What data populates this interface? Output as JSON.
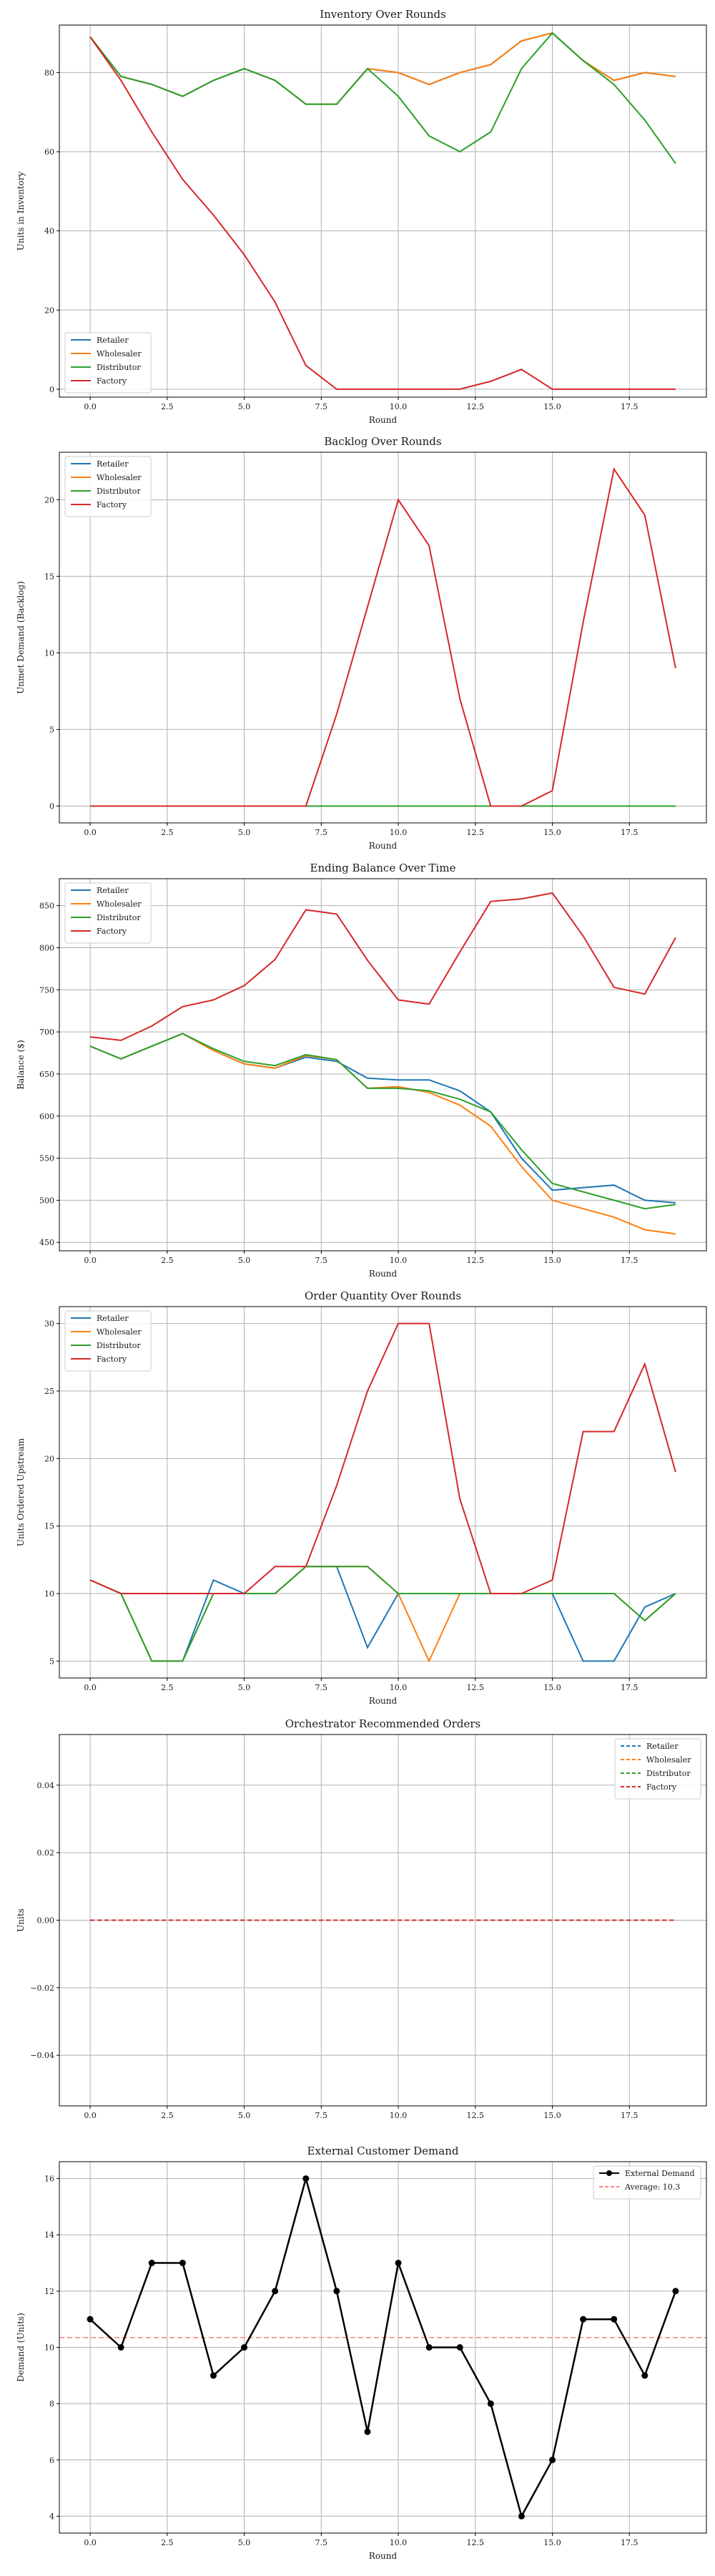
{
  "chart_data": [
    {
      "type": "line",
      "title": "Inventory Over Rounds",
      "xlabel": "Round",
      "ylabel": "Units in Inventory",
      "xlim": [
        -1,
        20
      ],
      "ylim": [
        -2,
        92
      ],
      "xticks": [
        "0.0",
        "2.5",
        "5.0",
        "7.5",
        "10.0",
        "12.5",
        "15.0",
        "17.5"
      ],
      "yticks": [
        "0",
        "20",
        "40",
        "60",
        "80"
      ],
      "grid": true,
      "legend_position": "lower-left",
      "x": [
        0,
        1,
        2,
        3,
        4,
        5,
        6,
        7,
        8,
        9,
        10,
        11,
        12,
        13,
        14,
        15,
        16,
        17,
        18,
        19
      ],
      "series": [
        {
          "name": "Retailer",
          "color": "#1f77b4",
          "values": [
            89,
            79,
            77,
            74,
            78,
            81,
            78,
            72,
            72,
            81,
            80,
            77,
            80,
            82,
            88,
            90,
            83,
            78,
            80,
            79
          ]
        },
        {
          "name": "Wholesaler",
          "color": "#ff7f0e",
          "values": [
            89,
            79,
            77,
            74,
            78,
            81,
            78,
            72,
            72,
            81,
            80,
            77,
            80,
            82,
            88,
            90,
            83,
            78,
            80,
            79
          ]
        },
        {
          "name": "Distributor",
          "color": "#2ca02c",
          "values": [
            89,
            79,
            77,
            74,
            78,
            81,
            78,
            72,
            72,
            81,
            74,
            64,
            60,
            65,
            81,
            90,
            83,
            77,
            68,
            57
          ]
        },
        {
          "name": "Factory",
          "color": "#d62728",
          "values": [
            89,
            78,
            65,
            53,
            44,
            34,
            22,
            6,
            0,
            0,
            0,
            0,
            0,
            2,
            5,
            0,
            0,
            0,
            0,
            0
          ]
        }
      ]
    },
    {
      "type": "line",
      "title": "Backlog Over Rounds",
      "xlabel": "Round",
      "ylabel": "Unmet Demand (Backlog)",
      "xlim": [
        -1,
        20
      ],
      "ylim": [
        -1.1,
        23.1
      ],
      "xticks": [
        "0.0",
        "2.5",
        "5.0",
        "7.5",
        "10.0",
        "12.5",
        "15.0",
        "17.5"
      ],
      "yticks": [
        "0",
        "5",
        "10",
        "15",
        "20"
      ],
      "grid": true,
      "legend_position": "upper-left",
      "x": [
        0,
        1,
        2,
        3,
        4,
        5,
        6,
        7,
        8,
        9,
        10,
        11,
        12,
        13,
        14,
        15,
        16,
        17,
        18,
        19
      ],
      "series": [
        {
          "name": "Retailer",
          "color": "#1f77b4",
          "values": [
            0,
            0,
            0,
            0,
            0,
            0,
            0,
            0,
            0,
            0,
            0,
            0,
            0,
            0,
            0,
            0,
            0,
            0,
            0,
            0
          ]
        },
        {
          "name": "Wholesaler",
          "color": "#ff7f0e",
          "values": [
            0,
            0,
            0,
            0,
            0,
            0,
            0,
            0,
            0,
            0,
            0,
            0,
            0,
            0,
            0,
            0,
            0,
            0,
            0,
            0
          ]
        },
        {
          "name": "Distributor",
          "color": "#2ca02c",
          "values": [
            0,
            0,
            0,
            0,
            0,
            0,
            0,
            0,
            0,
            0,
            0,
            0,
            0,
            0,
            0,
            0,
            0,
            0,
            0,
            0
          ]
        },
        {
          "name": "Factory",
          "color": "#d62728",
          "values": [
            0,
            0,
            0,
            0,
            0,
            0,
            0,
            0,
            6,
            13,
            20,
            17,
            7,
            0,
            0,
            1,
            12,
            22,
            19,
            9
          ]
        }
      ]
    },
    {
      "type": "line",
      "title": "Ending Balance Over Time",
      "xlabel": "Round",
      "ylabel": "Balance ($)",
      "xlim": [
        -1,
        20
      ],
      "ylim": [
        440,
        882
      ],
      "xticks": [
        "0.0",
        "2.5",
        "5.0",
        "7.5",
        "10.0",
        "12.5",
        "15.0",
        "17.5"
      ],
      "yticks": [
        "450",
        "500",
        "550",
        "600",
        "650",
        "700",
        "750",
        "800",
        "850"
      ],
      "grid": true,
      "legend_position": "upper-left",
      "x": [
        0,
        1,
        2,
        3,
        4,
        5,
        6,
        7,
        8,
        9,
        10,
        11,
        12,
        13,
        14,
        15,
        16,
        17,
        18,
        19
      ],
      "series": [
        {
          "name": "Retailer",
          "color": "#1f77b4",
          "values": [
            683,
            668,
            683,
            698,
            678,
            662,
            657,
            670,
            665,
            645,
            643,
            643,
            630,
            605,
            550,
            512,
            515,
            518,
            500,
            497
          ]
        },
        {
          "name": "Wholesaler",
          "color": "#ff7f0e",
          "values": [
            683,
            668,
            683,
            698,
            678,
            662,
            657,
            672,
            667,
            633,
            635,
            628,
            613,
            588,
            540,
            500,
            490,
            480,
            465,
            460
          ]
        },
        {
          "name": "Distributor",
          "color": "#2ca02c",
          "values": [
            683,
            668,
            683,
            698,
            680,
            665,
            660,
            673,
            667,
            633,
            633,
            630,
            620,
            605,
            560,
            520,
            510,
            500,
            490,
            495
          ]
        },
        {
          "name": "Factory",
          "color": "#d62728",
          "values": [
            694,
            690,
            707,
            730,
            738,
            755,
            786,
            845,
            840,
            785,
            738,
            733,
            795,
            855,
            858,
            865,
            814,
            753,
            745,
            812
          ]
        }
      ]
    },
    {
      "type": "line",
      "title": "Order Quantity Over Rounds",
      "xlabel": "Round",
      "ylabel": "Units Ordered Upstream",
      "xlim": [
        -1,
        20
      ],
      "ylim": [
        3.75,
        31.25
      ],
      "xticks": [
        "0.0",
        "2.5",
        "5.0",
        "7.5",
        "10.0",
        "12.5",
        "15.0",
        "17.5"
      ],
      "yticks": [
        "5",
        "10",
        "15",
        "20",
        "25",
        "30"
      ],
      "grid": true,
      "legend_position": "upper-left",
      "x": [
        0,
        1,
        2,
        3,
        4,
        5,
        6,
        7,
        8,
        9,
        10,
        11,
        12,
        13,
        14,
        15,
        16,
        17,
        18,
        19
      ],
      "series": [
        {
          "name": "Retailer",
          "color": "#1f77b4",
          "values": [
            11,
            10,
            5,
            5,
            11,
            10,
            10,
            12,
            12,
            6,
            10,
            10,
            10,
            10,
            10,
            10,
            5,
            5,
            9,
            10
          ]
        },
        {
          "name": "Wholesaler",
          "color": "#ff7f0e",
          "values": [
            11,
            10,
            5,
            5,
            10,
            10,
            10,
            12,
            12,
            12,
            10,
            5,
            10,
            10,
            10,
            10,
            10,
            10,
            8,
            10
          ]
        },
        {
          "name": "Distributor",
          "color": "#2ca02c",
          "values": [
            11,
            10,
            5,
            5,
            10,
            10,
            10,
            12,
            12,
            12,
            10,
            10,
            10,
            10,
            10,
            10,
            10,
            10,
            8,
            10
          ]
        },
        {
          "name": "Factory",
          "color": "#d62728",
          "values": [
            11,
            10,
            10,
            10,
            10,
            10,
            12,
            12,
            18,
            25,
            30,
            30,
            17,
            10,
            10,
            11,
            22,
            22,
            27,
            19
          ]
        }
      ]
    },
    {
      "type": "line",
      "title": "Orchestrator Recommended Orders",
      "xlabel": "",
      "ylabel": "Units",
      "xlim": [
        -1,
        20
      ],
      "ylim": [
        -0.055,
        0.055
      ],
      "xticks": [
        "0.0",
        "2.5",
        "5.0",
        "7.5",
        "10.0",
        "12.5",
        "15.0",
        "17.5"
      ],
      "yticks": [
        "−0.04",
        "−0.02",
        "0.00",
        "0.02",
        "0.04"
      ],
      "grid": true,
      "legend_position": "upper-right",
      "dashed": true,
      "x": [
        0,
        1,
        2,
        3,
        4,
        5,
        6,
        7,
        8,
        9,
        10,
        11,
        12,
        13,
        14,
        15,
        16,
        17,
        18,
        19
      ],
      "series": [
        {
          "name": "Retailer",
          "color": "#1f77b4",
          "values": [
            0,
            0,
            0,
            0,
            0,
            0,
            0,
            0,
            0,
            0,
            0,
            0,
            0,
            0,
            0,
            0,
            0,
            0,
            0,
            0
          ]
        },
        {
          "name": "Wholesaler",
          "color": "#ff7f0e",
          "values": [
            0,
            0,
            0,
            0,
            0,
            0,
            0,
            0,
            0,
            0,
            0,
            0,
            0,
            0,
            0,
            0,
            0,
            0,
            0,
            0
          ]
        },
        {
          "name": "Distributor",
          "color": "#2ca02c",
          "values": [
            0,
            0,
            0,
            0,
            0,
            0,
            0,
            0,
            0,
            0,
            0,
            0,
            0,
            0,
            0,
            0,
            0,
            0,
            0,
            0
          ]
        },
        {
          "name": "Factory",
          "color": "#d62728",
          "values": [
            0,
            0,
            0,
            0,
            0,
            0,
            0,
            0,
            0,
            0,
            0,
            0,
            0,
            0,
            0,
            0,
            0,
            0,
            0,
            0
          ]
        }
      ]
    },
    {
      "type": "line",
      "title": "External Customer Demand",
      "xlabel": "Round",
      "ylabel": "Demand (Units)",
      "xlim": [
        -1,
        20
      ],
      "ylim": [
        3.4,
        16.6
      ],
      "xticks": [
        "0.0",
        "2.5",
        "5.0",
        "7.5",
        "10.0",
        "12.5",
        "15.0",
        "17.5"
      ],
      "yticks": [
        "4",
        "6",
        "8",
        "10",
        "12",
        "14",
        "16"
      ],
      "grid": true,
      "legend_position": "upper-right",
      "x": [
        0,
        1,
        2,
        3,
        4,
        5,
        6,
        7,
        8,
        9,
        10,
        11,
        12,
        13,
        14,
        15,
        16,
        17,
        18,
        19
      ],
      "series": [
        {
          "name": "External Demand",
          "color": "#000000",
          "markers": true,
          "values": [
            11,
            10,
            13,
            13,
            9,
            10,
            12,
            16,
            12,
            7,
            13,
            10,
            10,
            8,
            4,
            6,
            11,
            11,
            9,
            12
          ]
        }
      ],
      "reference_line": {
        "name": "Average: 10.3",
        "color": "#ff8080",
        "value": 10.35
      }
    }
  ]
}
